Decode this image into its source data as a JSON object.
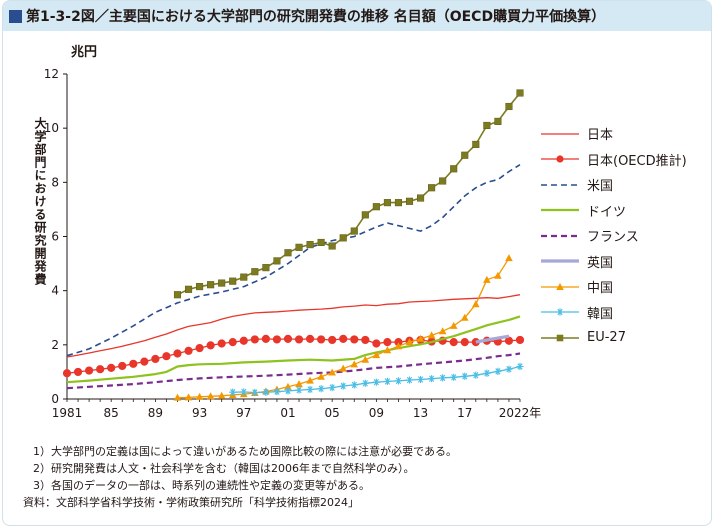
{
  "title": "第1-3-2図／主要国における大学部門の研究開発費の推移 名目額（OECD購買力平価換算）",
  "unit_label": "兆円",
  "y_axis_label": "大学部門における研究開発費",
  "notes": [
    "1）大学部門の定義は国によって違いがあるため国際比較の際には注意が必要である。",
    "2）研究開発費は人文・社会科学を含む（韓国は2006年まで自然科学のみ）。",
    "3）各国のデータの一部は、時系列の連続性や定義の変更等がある。"
  ],
  "source": "資料：文部科学省科学技術・学術政策研究所「科学技術指標2024」",
  "chart_data": {
    "type": "line",
    "xlabel": "",
    "ylabel": "大学部門における研究開発費",
    "xlim": [
      1981,
      2022
    ],
    "ylim": [
      0,
      12
    ],
    "y_ticks": [
      "0",
      "2",
      "4",
      "6",
      "8",
      "10",
      "12"
    ],
    "x_ticks": [
      {
        "year": 1981,
        "label": "1981"
      },
      {
        "year": 1985,
        "label": "85"
      },
      {
        "year": 1989,
        "label": "89"
      },
      {
        "year": 1993,
        "label": "93"
      },
      {
        "year": 1997,
        "label": "97"
      },
      {
        "year": 2001,
        "label": "01"
      },
      {
        "year": 2005,
        "label": "05"
      },
      {
        "year": 2009,
        "label": "09"
      },
      {
        "year": 2013,
        "label": "13"
      },
      {
        "year": 2017,
        "label": "17"
      },
      {
        "year": 2022,
        "label": "2022年"
      }
    ],
    "series": [
      {
        "name": "日本",
        "color": "#e8362b",
        "style": "solid",
        "marker": "none",
        "width": 1.3,
        "x": [
          1981,
          1982,
          1983,
          1984,
          1985,
          1986,
          1987,
          1988,
          1989,
          1990,
          1991,
          1992,
          1993,
          1994,
          1995,
          1996,
          1997,
          1998,
          1999,
          2000,
          2001,
          2002,
          2003,
          2004,
          2005,
          2006,
          2007,
          2008,
          2009,
          2010,
          2011,
          2012,
          2013,
          2014,
          2015,
          2016,
          2017,
          2018,
          2019,
          2020,
          2021,
          2022
        ],
        "values": [
          1.55,
          1.62,
          1.7,
          1.78,
          1.86,
          1.95,
          2.05,
          2.15,
          2.28,
          2.4,
          2.55,
          2.68,
          2.75,
          2.82,
          2.95,
          3.05,
          3.12,
          3.18,
          3.2,
          3.22,
          3.25,
          3.28,
          3.3,
          3.32,
          3.35,
          3.4,
          3.43,
          3.47,
          3.45,
          3.5,
          3.52,
          3.58,
          3.6,
          3.62,
          3.65,
          3.68,
          3.7,
          3.72,
          3.74,
          3.72,
          3.78,
          3.85
        ]
      },
      {
        "name": "日本(OECD推計)",
        "color": "#e8362b",
        "style": "solid",
        "marker": "circle",
        "width": 1.3,
        "x": [
          1981,
          1982,
          1983,
          1984,
          1985,
          1986,
          1987,
          1988,
          1989,
          1990,
          1991,
          1992,
          1993,
          1994,
          1995,
          1996,
          1997,
          1998,
          1999,
          2000,
          2001,
          2002,
          2003,
          2004,
          2005,
          2006,
          2007,
          2008,
          2009,
          2010,
          2011,
          2012,
          2013,
          2014,
          2015,
          2016,
          2017,
          2018,
          2019,
          2020,
          2021,
          2022
        ],
        "values": [
          0.95,
          1.0,
          1.05,
          1.1,
          1.15,
          1.22,
          1.3,
          1.38,
          1.48,
          1.58,
          1.68,
          1.78,
          1.88,
          1.98,
          2.05,
          2.1,
          2.15,
          2.2,
          2.22,
          2.2,
          2.22,
          2.2,
          2.22,
          2.2,
          2.18,
          2.22,
          2.2,
          2.18,
          2.05,
          2.1,
          2.1,
          2.15,
          2.18,
          2.12,
          2.15,
          2.1,
          2.1,
          2.1,
          2.15,
          2.12,
          2.15,
          2.18
        ]
      },
      {
        "name": "米国",
        "color": "#2a4d8f",
        "style": "dash",
        "marker": "none",
        "width": 1.6,
        "x": [
          1981,
          1983,
          1985,
          1987,
          1989,
          1991,
          1993,
          1995,
          1997,
          1999,
          2001,
          2003,
          2005,
          2007,
          2009,
          2010,
          2011,
          2012,
          2013,
          2014,
          2015,
          2016,
          2017,
          2018,
          2019,
          2020,
          2021,
          2022
        ],
        "values": [
          1.6,
          1.85,
          2.25,
          2.7,
          3.2,
          3.55,
          3.8,
          3.95,
          4.15,
          4.5,
          5.0,
          5.6,
          5.85,
          6.0,
          6.35,
          6.5,
          6.4,
          6.3,
          6.2,
          6.4,
          6.7,
          7.1,
          7.5,
          7.8,
          8.0,
          8.1,
          8.4,
          8.65
        ]
      },
      {
        "name": "ドイツ",
        "color": "#8dc21f",
        "style": "solid",
        "marker": "none",
        "width": 2.2,
        "x": [
          1981,
          1983,
          1985,
          1987,
          1989,
          1990,
          1991,
          1992,
          1993,
          1995,
          1997,
          1999,
          2001,
          2003,
          2005,
          2007,
          2008,
          2009,
          2010,
          2011,
          2012,
          2013,
          2014,
          2015,
          2016,
          2017,
          2018,
          2019,
          2020,
          2021,
          2022
        ],
        "values": [
          0.62,
          0.68,
          0.75,
          0.82,
          0.92,
          1.0,
          1.2,
          1.25,
          1.28,
          1.3,
          1.35,
          1.38,
          1.42,
          1.45,
          1.42,
          1.48,
          1.62,
          1.72,
          1.8,
          1.88,
          1.95,
          2.02,
          2.1,
          2.22,
          2.32,
          2.45,
          2.58,
          2.72,
          2.82,
          2.92,
          3.05
        ]
      },
      {
        "name": "フランス",
        "color": "#7b2c8f",
        "style": "dash",
        "marker": "none",
        "width": 2.2,
        "x": [
          1981,
          1983,
          1985,
          1987,
          1989,
          1991,
          1993,
          1995,
          1997,
          1999,
          2001,
          2003,
          2005,
          2007,
          2009,
          2011,
          2013,
          2015,
          2017,
          2019,
          2020,
          2021,
          2022
        ],
        "values": [
          0.4,
          0.45,
          0.5,
          0.55,
          0.62,
          0.7,
          0.76,
          0.8,
          0.83,
          0.86,
          0.9,
          0.95,
          0.98,
          1.05,
          1.15,
          1.2,
          1.28,
          1.35,
          1.42,
          1.52,
          1.58,
          1.62,
          1.68
        ]
      },
      {
        "name": "英国",
        "color": "#a6a8d6",
        "style": "solid",
        "marker": "none",
        "width": 3.2,
        "x": [
          2018,
          2019,
          2020,
          2021
        ],
        "values": [
          2.1,
          2.18,
          2.25,
          2.32
        ]
      },
      {
        "name": "中国",
        "color": "#f39800",
        "style": "solid",
        "marker": "triangle",
        "width": 1.3,
        "x": [
          1991,
          1992,
          1993,
          1994,
          1995,
          1996,
          1997,
          1998,
          1999,
          2000,
          2001,
          2002,
          2003,
          2004,
          2005,
          2006,
          2007,
          2008,
          2009,
          2010,
          2011,
          2012,
          2013,
          2014,
          2015,
          2016,
          2017,
          2018,
          2019,
          2020,
          2021
        ],
        "values": [
          0.05,
          0.06,
          0.08,
          0.1,
          0.12,
          0.15,
          0.18,
          0.22,
          0.28,
          0.35,
          0.45,
          0.55,
          0.68,
          0.82,
          0.98,
          1.12,
          1.28,
          1.45,
          1.62,
          1.8,
          1.95,
          2.1,
          2.22,
          2.35,
          2.5,
          2.7,
          3.0,
          3.5,
          4.4,
          4.55,
          5.2
        ]
      },
      {
        "name": "韓国",
        "color": "#4bbde6",
        "style": "solid",
        "marker": "star",
        "width": 1.3,
        "x": [
          1996,
          1997,
          1998,
          1999,
          2000,
          2001,
          2002,
          2003,
          2004,
          2005,
          2006,
          2007,
          2008,
          2009,
          2010,
          2011,
          2012,
          2013,
          2014,
          2015,
          2016,
          2017,
          2018,
          2019,
          2020,
          2021,
          2022
        ],
        "values": [
          0.25,
          0.26,
          0.24,
          0.25,
          0.27,
          0.3,
          0.33,
          0.35,
          0.38,
          0.42,
          0.48,
          0.52,
          0.58,
          0.62,
          0.65,
          0.67,
          0.7,
          0.72,
          0.75,
          0.78,
          0.8,
          0.84,
          0.88,
          0.95,
          1.02,
          1.1,
          1.2
        ]
      },
      {
        "name": "EU-27",
        "color": "#7d7b20",
        "style": "solid",
        "marker": "square",
        "width": 1.6,
        "x": [
          1991,
          1992,
          1993,
          1994,
          1995,
          1996,
          1997,
          1998,
          1999,
          2000,
          2001,
          2002,
          2003,
          2004,
          2005,
          2006,
          2007,
          2008,
          2009,
          2010,
          2011,
          2012,
          2013,
          2014,
          2015,
          2016,
          2017,
          2018,
          2019,
          2020,
          2021,
          2022
        ],
        "values": [
          3.85,
          4.05,
          4.15,
          4.22,
          4.28,
          4.35,
          4.5,
          4.7,
          4.85,
          5.1,
          5.4,
          5.6,
          5.7,
          5.78,
          5.65,
          5.95,
          6.2,
          6.8,
          7.1,
          7.25,
          7.25,
          7.3,
          7.42,
          7.8,
          8.05,
          8.5,
          9.0,
          9.4,
          10.1,
          10.25,
          10.8,
          11.3
        ]
      }
    ]
  }
}
